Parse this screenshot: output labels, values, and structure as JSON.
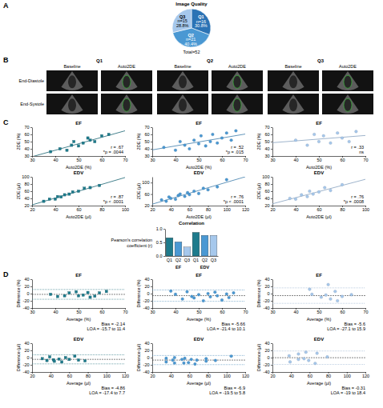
{
  "panels": [
    "A",
    "B",
    "C",
    "D"
  ],
  "images": {
    "groups": [
      "Q1",
      "Q2",
      "Q3"
    ],
    "columns": [
      "Baseline",
      "Auto2DE"
    ],
    "rows": [
      "End-Diastole",
      "End-Systole"
    ]
  },
  "chart_data": [
    {
      "type": "pie",
      "title": "Image Quality",
      "categories": [
        "Q1",
        "Q2",
        "Q3"
      ],
      "values": [
        30.8,
        40.4,
        28.8
      ],
      "value_labels": [
        "30.8%",
        "40.4%",
        "28.8%"
      ],
      "count_labels": [
        "n=16",
        "n=21",
        "n=15"
      ],
      "total_label": "Total=52",
      "colors": [
        "#2b73b5",
        "#4a98d3",
        "#a6c8ec"
      ],
      "data_labels": true
    },
    {
      "type": "scatter",
      "title": "EF",
      "x_label": "Auto2DE (%)",
      "y_label": "2DE (%)",
      "x": [
        38,
        42,
        45,
        47,
        48,
        50,
        52,
        54,
        55,
        57,
        60,
        63
      ],
      "values": [
        36,
        40,
        38,
        45,
        50,
        44,
        48,
        55,
        52,
        50,
        58,
        60
      ],
      "xlim": [
        30,
        70
      ],
      "ylim": [
        30,
        70
      ],
      "xticks": [
        30,
        40,
        50,
        60,
        70
      ],
      "yticks": [
        30,
        40,
        50,
        60,
        70
      ],
      "color": "#1e7b8c",
      "marker": "square",
      "fit": {
        "slope": 0.9,
        "intercept": 2
      },
      "annotations": [
        "r = .67",
        "*p = .0044"
      ]
    },
    {
      "type": "scatter",
      "title": "EF",
      "x_label": "Auto2DE (%)",
      "y_label": "2DE (%)",
      "x": [
        35,
        40,
        42,
        44,
        46,
        48,
        50,
        51,
        53,
        55,
        56,
        58,
        60,
        62,
        64,
        66
      ],
      "values": [
        42,
        38,
        50,
        45,
        40,
        52,
        47,
        58,
        44,
        50,
        60,
        48,
        55,
        62,
        52,
        65
      ],
      "xlim": [
        30,
        70
      ],
      "ylim": [
        30,
        70
      ],
      "xticks": [
        30,
        40,
        50,
        60,
        70
      ],
      "yticks": [
        30,
        40,
        50,
        60,
        70
      ],
      "color": "#4a98d3",
      "marker": "circle",
      "fit": {
        "slope": 0.55,
        "intercept": 22
      },
      "annotations": [
        "r = .52",
        "*p = .015"
      ]
    },
    {
      "type": "scatter",
      "title": "EF",
      "x_label": "Auto2DE (%)",
      "y_label": "2DE (%)",
      "x": [
        40,
        45,
        48,
        50,
        52,
        55,
        58,
        60,
        63,
        66
      ],
      "values": [
        52,
        45,
        60,
        50,
        58,
        48,
        62,
        55,
        50,
        64
      ],
      "xlim": [
        30,
        70
      ],
      "ylim": [
        30,
        70
      ],
      "xticks": [
        30,
        40,
        50,
        60,
        70
      ],
      "yticks": [
        30,
        40,
        50,
        60,
        70
      ],
      "color": "#a6c8ec",
      "marker": "circle",
      "fit": {
        "slope": 0.25,
        "intercept": 41
      },
      "annotations": [
        "r = .33",
        "ns"
      ]
    },
    {
      "type": "scatter",
      "title": "EDV",
      "x_label": "Auto2DE (µl)",
      "y_label": "2DE (µl)",
      "x": [
        30,
        35,
        40,
        42,
        45,
        48,
        52,
        55,
        60,
        65,
        70,
        78
      ],
      "values": [
        32,
        38,
        38,
        45,
        44,
        50,
        52,
        58,
        60,
        68,
        70,
        76
      ],
      "xlim": [
        20,
        100
      ],
      "ylim": [
        20,
        100
      ],
      "xticks": [
        20,
        40,
        60,
        80,
        100
      ],
      "yticks": [
        20,
        40,
        60,
        80,
        100
      ],
      "color": "#1e7b8c",
      "marker": "square",
      "fit": {
        "slope": 0.95,
        "intercept": 3
      },
      "annotations": [
        "r = .87",
        "*p < .0001"
      ]
    },
    {
      "type": "scatter",
      "title": "EDV",
      "x_label": "Auto2DE (µl)",
      "y_label": "2DE (µl)",
      "x": [
        30,
        35,
        38,
        40,
        45,
        48,
        50,
        55,
        58,
        60,
        65,
        70,
        75,
        80,
        90,
        100
      ],
      "values": [
        40,
        35,
        50,
        45,
        42,
        55,
        60,
        52,
        65,
        58,
        70,
        62,
        80,
        75,
        85,
        110
      ],
      "xlim": [
        20,
        120
      ],
      "ylim": [
        20,
        120
      ],
      "xticks": [
        20,
        40,
        60,
        80,
        100,
        120
      ],
      "yticks": [
        20,
        60,
        100
      ],
      "color": "#4a98d3",
      "marker": "circle",
      "fit": {
        "slope": 0.95,
        "intercept": 6
      },
      "annotations": [
        "r = .76",
        "*p < .0001"
      ]
    },
    {
      "type": "scatter",
      "title": "EDV",
      "x_label": "Auto2DE (µl)",
      "y_label": "2DE (µl)",
      "x": [
        35,
        40,
        45,
        50,
        52,
        55,
        60,
        65,
        70,
        80
      ],
      "values": [
        40,
        38,
        50,
        45,
        60,
        52,
        58,
        70,
        62,
        78
      ],
      "xlim": [
        20,
        100
      ],
      "ylim": [
        20,
        100
      ],
      "xticks": [
        20,
        40,
        60,
        80,
        100
      ],
      "yticks": [
        20,
        40,
        60,
        80,
        100
      ],
      "color": "#a6c8ec",
      "marker": "circle",
      "fit": {
        "slope": 0.85,
        "intercept": 8
      },
      "annotations": [
        "r = .76",
        "*p = .0008"
      ]
    },
    {
      "type": "bar",
      "title": "Correlation",
      "y_label": "Pearson's correlation coefficient (r)",
      "categories": [
        "Q1",
        "Q2",
        "Q3",
        "Q1",
        "Q2",
        "Q3"
      ],
      "values": [
        0.67,
        0.52,
        0.33,
        0.87,
        0.76,
        0.76
      ],
      "colors": [
        "#1e7b8c",
        "#4a98d3",
        "#a6c8ec",
        "#1e7b8c",
        "#4a98d3",
        "#a6c8ec"
      ],
      "groups": [
        {
          "name": "EF",
          "size": 3
        },
        {
          "name": "EDV",
          "size": 3
        }
      ],
      "ylim": [
        0,
        1
      ],
      "yticks": [
        {
          "value": 0,
          "label": "0.0"
        },
        {
          "value": 0.5,
          "label": "0.5"
        },
        {
          "value": 1,
          "label": "1.0"
        }
      ]
    },
    {
      "type": "scatter",
      "title": "EF",
      "x_label": "Average (%)",
      "y_label": "Difference (%)",
      "x": [
        38,
        41,
        44,
        46,
        49,
        50,
        52,
        54,
        55,
        57,
        59,
        62
      ],
      "values": [
        -2,
        -8,
        -6,
        2,
        5,
        -6,
        -4,
        3,
        -10,
        -7,
        2,
        6
      ],
      "xlim": [
        30,
        70
      ],
      "ylim": [
        -40,
        40
      ],
      "xticks": [
        30,
        40,
        50,
        60,
        70
      ],
      "yticks": [
        -40,
        -20,
        0,
        20,
        40
      ],
      "color": "#1e7b8c",
      "marker": "square",
      "bias": -2.14,
      "loa": [
        -15.7,
        11.4
      ],
      "annotations": [
        "Bias = -2.14",
        "LOA = -15.7 to 11.4"
      ]
    },
    {
      "type": "scatter",
      "title": "EF",
      "x_label": "Average (%)",
      "y_label": "Difference (%)",
      "x": [
        38,
        40,
        43,
        45,
        47,
        48,
        50,
        52,
        54,
        55,
        57,
        58,
        60,
        62,
        63,
        65
      ],
      "values": [
        7,
        -2,
        -15,
        5,
        -8,
        -12,
        -3,
        -20,
        0,
        -9,
        4,
        -6,
        -18,
        -1,
        -11,
        2
      ],
      "xlim": [
        30,
        70
      ],
      "ylim": [
        -40,
        40
      ],
      "xticks": [
        30,
        40,
        50,
        60,
        70
      ],
      "yticks": [
        -40,
        -20,
        0,
        20,
        40
      ],
      "color": "#4a98d3",
      "marker": "circle",
      "bias": -5.66,
      "loa": [
        -21.4,
        10.1
      ],
      "annotations": [
        "Bias = -5.66",
        "LOA = -21.4 to 10.1"
      ]
    },
    {
      "type": "scatter",
      "title": "EF",
      "x_label": "Average (%)",
      "y_label": "Difference (%)",
      "x": [
        46,
        47,
        51,
        53,
        54,
        55,
        57,
        58,
        60,
        64
      ],
      "values": [
        12,
        -2,
        -10,
        -4,
        25,
        -15,
        6,
        -20,
        -8,
        -3
      ],
      "xlim": [
        30,
        70
      ],
      "ylim": [
        -40,
        40
      ],
      "xticks": [
        30,
        40,
        50,
        60,
        70
      ],
      "yticks": [
        -40,
        -20,
        0,
        20,
        40
      ],
      "color": "#a6c8ec",
      "marker": "circle",
      "bias": -5.6,
      "loa": [
        -27.1,
        15.9
      ],
      "annotations": [
        "Bias = -5.6",
        "LOA = -27.1 to 15.9"
      ]
    },
    {
      "type": "scatter",
      "title": "EDV",
      "x_label": "Average (µl)",
      "y_label": "Difference (µl)",
      "x": [
        31,
        36,
        39,
        43,
        44,
        49,
        52,
        56,
        60,
        66,
        70,
        77
      ],
      "values": [
        -3,
        -8,
        2,
        -6,
        -10,
        -4,
        -12,
        0,
        -5,
        4,
        -7,
        -9
      ],
      "xlim": [
        20,
        120
      ],
      "ylim": [
        -40,
        40
      ],
      "xticks": [
        20,
        40,
        60,
        80,
        100,
        120
      ],
      "yticks": [
        -40,
        -20,
        0,
        20,
        40
      ],
      "color": "#1e7b8c",
      "marker": "square",
      "bias": -4.86,
      "loa": [
        -17.4,
        7.7
      ],
      "annotations": [
        "Bias = -4.86",
        "LOA = -17.4 to 7.7"
      ]
    },
    {
      "type": "scatter",
      "title": "EDV",
      "x_label": "Average (µl)",
      "y_label": "Difference (µl)",
      "x": [
        35,
        35,
        44,
        42,
        44,
        52,
        55,
        54,
        62,
        59,
        68,
        66,
        78,
        78,
        88,
        105
      ],
      "values": [
        -2,
        -12,
        0,
        -7,
        -15,
        -5,
        -2,
        -15,
        -5,
        -14,
        -7,
        -18,
        -3,
        -10,
        -8,
        4
      ],
      "xlim": [
        20,
        120
      ],
      "ylim": [
        -40,
        40
      ],
      "xticks": [
        20,
        40,
        60,
        80,
        100,
        120
      ],
      "yticks": [
        -40,
        -20,
        0,
        20,
        40
      ],
      "color": "#4a98d3",
      "marker": "circle",
      "bias": -6.9,
      "loa": [
        -19.5,
        5.8
      ],
      "annotations": [
        "Bias = -6.9",
        "LOA = -19.5 to 5.8"
      ]
    },
    {
      "type": "scatter",
      "title": "EDV",
      "x_label": "Average (µl)",
      "y_label": "Difference (µl)",
      "x": [
        38,
        39,
        48,
        48,
        56,
        54,
        59,
        68,
        66,
        79
      ],
      "values": [
        5,
        -12,
        10,
        -5,
        15,
        -3,
        -8,
        12,
        -16,
        2
      ],
      "xlim": [
        20,
        120
      ],
      "ylim": [
        -40,
        40
      ],
      "xticks": [
        20,
        40,
        60,
        80,
        100,
        120
      ],
      "yticks": [
        -40,
        -20,
        0,
        20,
        40
      ],
      "color": "#a6c8ec",
      "marker": "circle",
      "bias": -0.31,
      "loa": [
        -19,
        18.4
      ],
      "annotations": [
        "Bias = -0.31",
        "LOA = -19 to 18.4"
      ]
    }
  ]
}
